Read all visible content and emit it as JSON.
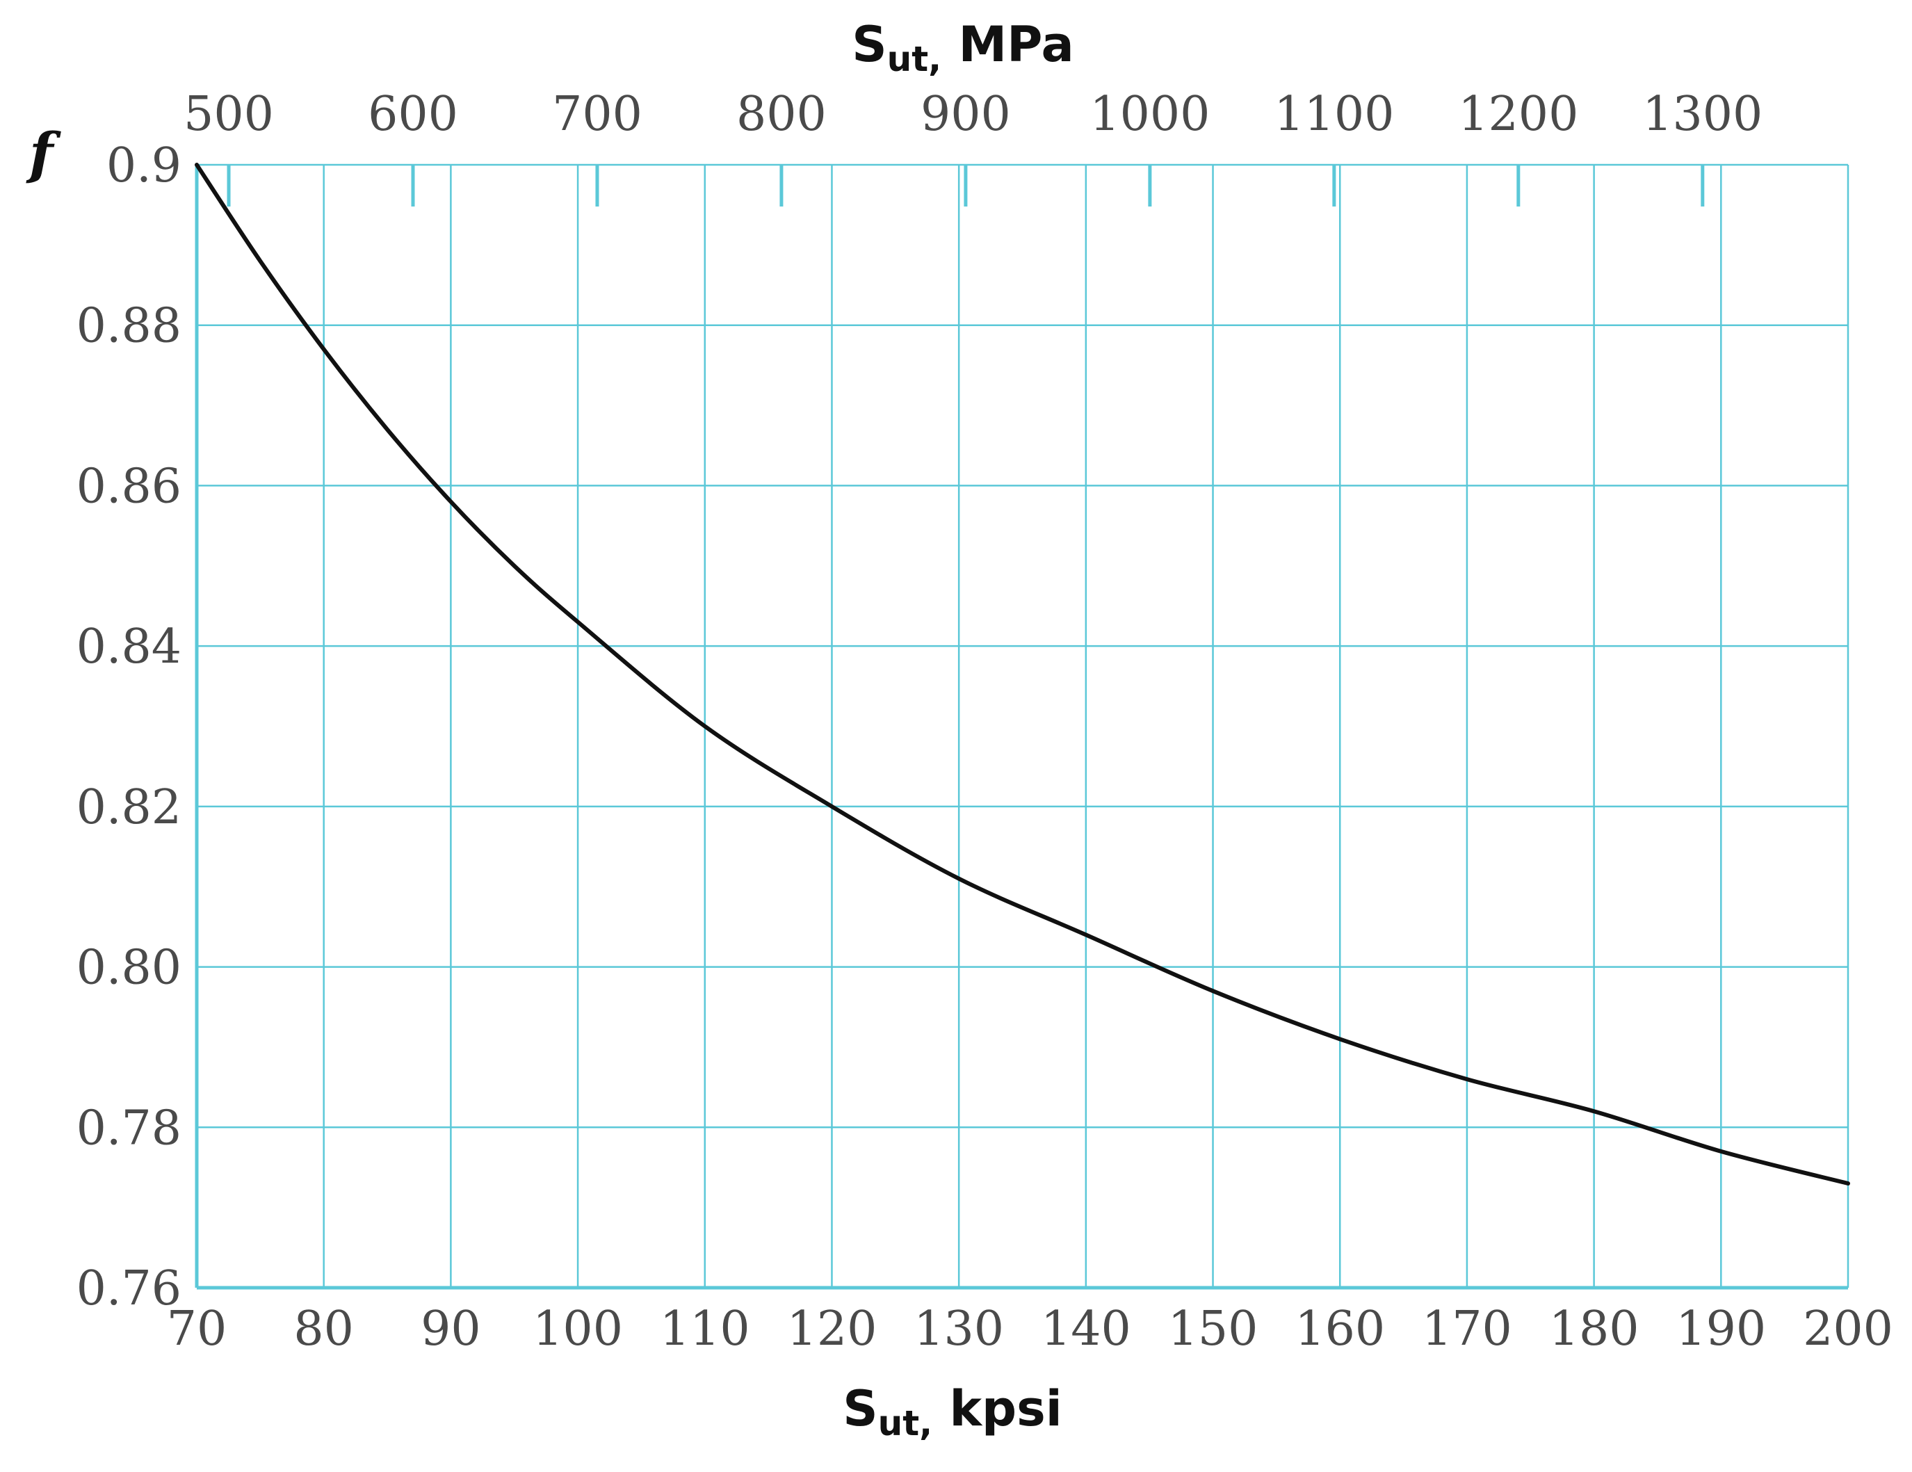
{
  "chart_data": {
    "type": "line",
    "ylabel": "f",
    "xlabel_bottom": {
      "main": "S",
      "sub": "ut,",
      "unit": " kpsi"
    },
    "xlabel_top": {
      "main": "S",
      "sub": "ut,",
      "unit": " MPa"
    },
    "xlim": [
      70,
      200
    ],
    "ylim": [
      0.76,
      0.9
    ],
    "x_ticks": [
      70,
      80,
      90,
      100,
      110,
      120,
      130,
      140,
      150,
      160,
      170,
      180,
      190,
      200
    ],
    "x_tick_labels": [
      "70",
      "80",
      "90",
      "100",
      "110",
      "120",
      "130",
      "140",
      "150",
      "160",
      "170",
      "180",
      "190",
      "200"
    ],
    "y_ticks": [
      0.76,
      0.78,
      0.8,
      0.82,
      0.84,
      0.86,
      0.88,
      0.9
    ],
    "y_tick_labels": [
      "0.76",
      "0.78",
      "0.80",
      "0.82",
      "0.84",
      "0.86",
      "0.88",
      "0.9"
    ],
    "top_axis_ticks_mpa": [
      500,
      600,
      700,
      800,
      900,
      1000,
      1100,
      1200,
      1300
    ],
    "top_axis_tick_labels": [
      "500",
      "600",
      "700",
      "800",
      "900",
      "1000",
      "1100",
      "1200",
      "1300"
    ],
    "grid": true,
    "colors": {
      "grid": "#5bc8d8",
      "curve": "#111111",
      "text": "#4a4a4a"
    },
    "series": [
      {
        "x": [
          70,
          75,
          80,
          85,
          90,
          95,
          100,
          110,
          120,
          130,
          140,
          150,
          160,
          170,
          180,
          190,
          200
        ],
        "y": [
          0.9,
          0.888,
          0.877,
          0.867,
          0.858,
          0.85,
          0.843,
          0.83,
          0.82,
          0.811,
          0.804,
          0.797,
          0.791,
          0.786,
          0.782,
          0.777,
          0.773
        ]
      }
    ]
  }
}
